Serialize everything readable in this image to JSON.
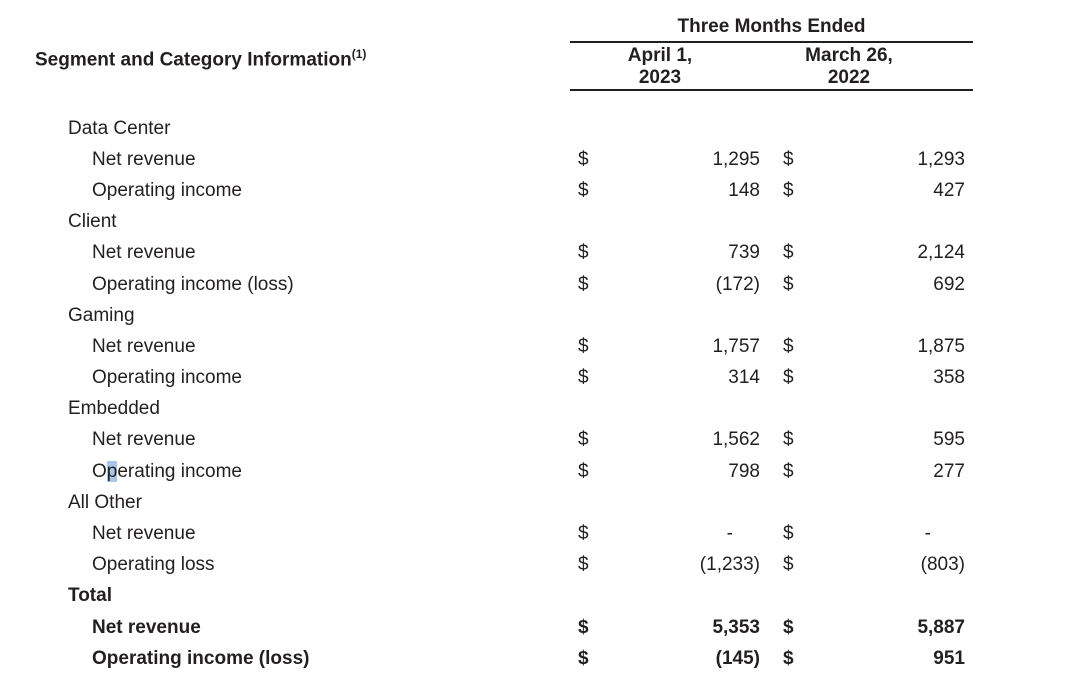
{
  "theme": {
    "page_bg": "#ffffff",
    "text_color": "#231f20",
    "rule_color": "#231f20",
    "selection_color": "#a9c7e6"
  },
  "table": {
    "left_header": {
      "title": "Segment and Category Information",
      "footnote_marker": "(1)"
    },
    "column_group_header": "Three Months Ended",
    "columns": [
      {
        "line1": "April 1,",
        "line2": "2023"
      },
      {
        "line1": "March 26,",
        "line2": "2022"
      }
    ],
    "currency_symbol": "$",
    "rows": [
      {
        "type": "section",
        "label": "Data Center"
      },
      {
        "type": "item",
        "label": "Net revenue",
        "values": [
          "1,295",
          "1,293"
        ]
      },
      {
        "type": "item",
        "label": "Operating income",
        "values": [
          "148",
          "427"
        ]
      },
      {
        "type": "section",
        "label": "Client"
      },
      {
        "type": "item",
        "label": "Net revenue",
        "values": [
          "739",
          "2,124"
        ]
      },
      {
        "type": "item",
        "label": "Operating income (loss)",
        "values": [
          "(172)",
          "692"
        ]
      },
      {
        "type": "section",
        "label": "Gaming"
      },
      {
        "type": "item",
        "label": "Net revenue",
        "values": [
          "1,757",
          "1,875"
        ]
      },
      {
        "type": "item",
        "label": "Operating income",
        "values": [
          "314",
          "358"
        ]
      },
      {
        "type": "section",
        "label": "Embedded"
      },
      {
        "type": "item",
        "label": "Net revenue",
        "values": [
          "1,562",
          "595"
        ]
      },
      {
        "type": "item",
        "label": "Operating income",
        "values": [
          "798",
          "277"
        ],
        "selection": {
          "prefix": "O",
          "selected": "p",
          "suffix": "erating income"
        }
      },
      {
        "type": "section",
        "label": "All Other"
      },
      {
        "type": "item",
        "label": "Net revenue",
        "values": [
          "-",
          "-"
        ]
      },
      {
        "type": "item",
        "label": "Operating loss",
        "values": [
          "(1,233)",
          "(803)"
        ]
      },
      {
        "type": "section",
        "label": "Total",
        "bold": true
      },
      {
        "type": "item",
        "label": "Net revenue",
        "values": [
          "5,353",
          "5,887"
        ],
        "bold": true
      },
      {
        "type": "item",
        "label": "Operating income (loss)",
        "values": [
          "(145)",
          "951"
        ],
        "bold": true
      }
    ]
  }
}
